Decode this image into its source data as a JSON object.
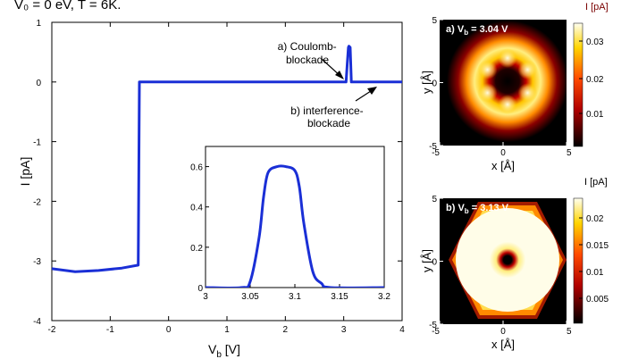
{
  "header_text": "V₀ = 0 eV, T = 6K.",
  "chart_data": [
    {
      "type": "line",
      "xlabel": "V",
      "xlabel_sub": "b",
      "xlabel_unit": " [V]",
      "ylabel": "I [pA]",
      "xlim": [
        -2,
        4
      ],
      "ylim": [
        -4,
        1
      ],
      "xticks": [
        "-2",
        "-1",
        "0",
        "1",
        "2",
        "3",
        "4"
      ],
      "yticks": [
        "-4",
        "-3",
        "-2",
        "-1",
        "0",
        "1"
      ],
      "color": "#1a2fd6",
      "x": [
        -2.0,
        -1.6,
        -1.2,
        -0.8,
        -0.52,
        -0.5,
        -0.4,
        0.0,
        1.0,
        2.0,
        3.0,
        3.04,
        3.06,
        3.08,
        3.09,
        3.11,
        3.13,
        3.2,
        4.0
      ],
      "y": [
        -3.13,
        -3.18,
        -3.16,
        -3.12,
        -3.07,
        0.0,
        0.0,
        0.0,
        0.0,
        0.0,
        0.0,
        0.0,
        0.3,
        0.58,
        0.6,
        0.58,
        0.0,
        0.0,
        0.0
      ],
      "annotations": [
        {
          "text": "a) Coulomb-\nblockade",
          "x": 3.05,
          "y": 0.25
        },
        {
          "text": "b) interference-\nblockade",
          "x": 3.17,
          "y": -0.05
        }
      ]
    },
    {
      "type": "line",
      "role": "inset",
      "xlim": [
        3.0,
        3.2
      ],
      "ylim": [
        0,
        0.7
      ],
      "xticks": [
        "3",
        "3.05",
        "3.1",
        "3.15",
        "3.2"
      ],
      "yticks": [
        "0",
        "0.2",
        "0.4",
        "0.6"
      ],
      "color": "#1a2fd6",
      "x": [
        3.0,
        3.04,
        3.05,
        3.06,
        3.065,
        3.07,
        3.08,
        3.09,
        3.1,
        3.105,
        3.11,
        3.12,
        3.13,
        3.14,
        3.2
      ],
      "y": [
        0.0,
        0.0,
        0.03,
        0.25,
        0.45,
        0.57,
        0.6,
        0.6,
        0.58,
        0.5,
        0.32,
        0.08,
        0.02,
        0.0,
        0.0
      ]
    },
    {
      "type": "heatmap",
      "title": "a) V",
      "title_sub": "b",
      "title_value": " = 3.04 V",
      "xlabel": "x [Å]",
      "ylabel": "y [Å]",
      "xlim": [
        -5,
        5
      ],
      "ylim": [
        -5,
        5
      ],
      "xticks": [
        "-5",
        "0",
        "5"
      ],
      "yticks": [
        "5",
        "0",
        "-5"
      ],
      "colorbar_label": "I [pA]",
      "colorbar_ticks": [
        "0.03",
        "0.02",
        "0.01"
      ],
      "pattern": "ring with six lobes, dark center"
    },
    {
      "type": "heatmap",
      "title": "b) V",
      "title_sub": "b",
      "title_value": " = 3.13 V",
      "xlabel": "x [Å]",
      "ylabel": "y [Å]",
      "xlim": [
        -5,
        5
      ],
      "ylim": [
        -5,
        5
      ],
      "xticks": [
        "-5",
        "0",
        "5"
      ],
      "yticks": [
        "5",
        "0",
        "-5"
      ],
      "colorbar_label": "I [pA]",
      "colorbar_ticks": [
        "0.02",
        "0.015",
        "0.01",
        "0.005"
      ],
      "pattern": "hexagonal bright disc with dark center dot"
    }
  ]
}
